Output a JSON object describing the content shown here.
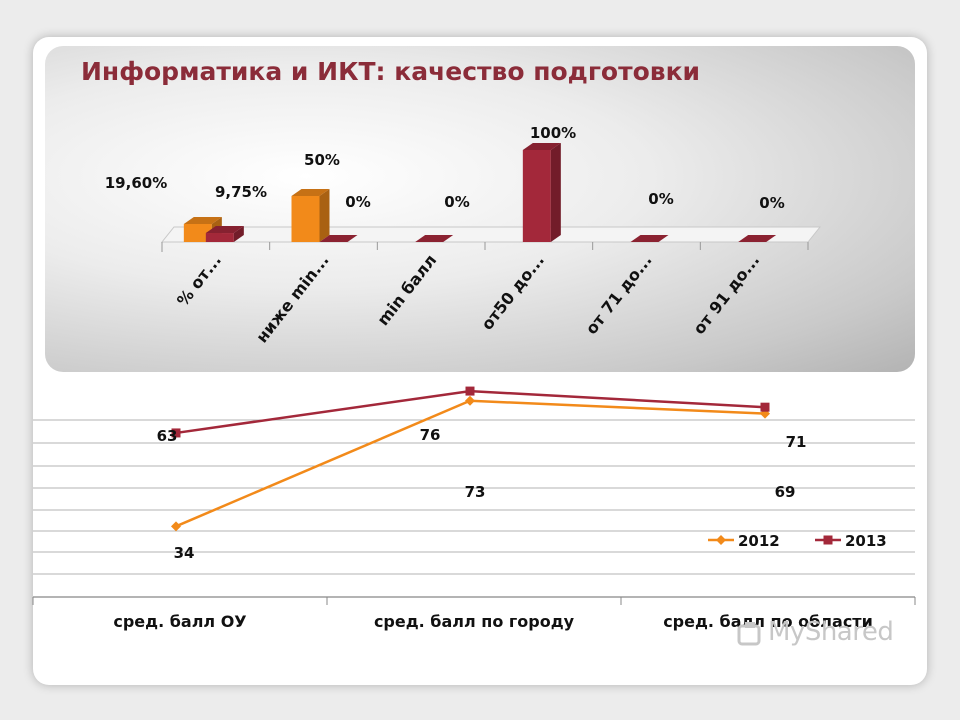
{
  "slide": {
    "title": "Информатика и ИКТ: качество подготовки",
    "watermark": "MyShared"
  },
  "colors": {
    "series_2012": "#f28a1a",
    "series_2013": "#a3283a",
    "title": "#8b2c39"
  },
  "chart_data": [
    {
      "type": "bar",
      "categories": [
        "% от...",
        "ниже min...",
        "min балл",
        "от50 до...",
        "от 71 до...",
        "от 91 до..."
      ],
      "series": [
        {
          "values": [
            19.6,
            50,
            null,
            null,
            null,
            null
          ],
          "labels": [
            "19,60%",
            "50%",
            "",
            "",
            "",
            ""
          ]
        },
        {
          "values": [
            9.75,
            0,
            0,
            100,
            0,
            0
          ],
          "labels": [
            "9,75%",
            "0%",
            "0%",
            "100%",
            "0%",
            "0%"
          ]
        }
      ],
      "ylim": [
        0,
        100
      ],
      "style": "3d-column"
    },
    {
      "type": "line",
      "categories": [
        "сред. балл ОУ",
        "сред. балл по городу",
        "сред. балл по области"
      ],
      "series": [
        {
          "name": "2012",
          "values": [
            34,
            73,
            69
          ]
        },
        {
          "name": "2013",
          "values": [
            63,
            76,
            71
          ]
        }
      ],
      "legend": "bottom-right",
      "grid": true
    }
  ]
}
